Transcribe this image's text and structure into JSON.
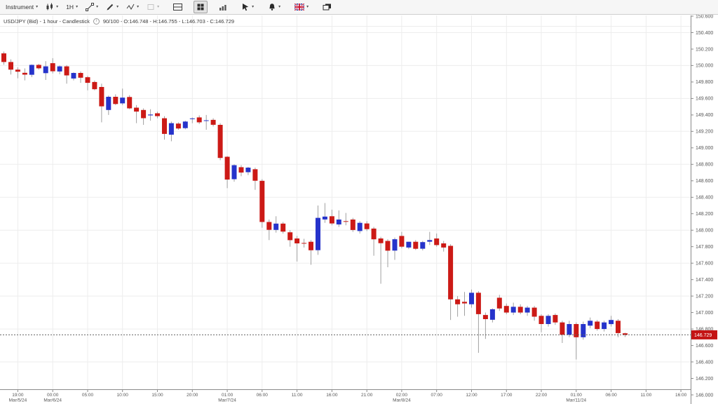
{
  "toolbar": {
    "items": [
      {
        "name": "instrument-selector",
        "label": "Instrument",
        "icon": null,
        "caret": true
      },
      {
        "name": "chart-type-button",
        "label": null,
        "icon": "candlestick-chart-icon",
        "caret": true
      },
      {
        "name": "timeframe-button",
        "label": "1H",
        "icon": null,
        "caret": true
      },
      {
        "name": "trendline-tool-button",
        "label": null,
        "icon": "trendline-icon",
        "caret": true
      },
      {
        "name": "draw-tool-button",
        "label": null,
        "icon": "pencil-icon",
        "caret": true
      },
      {
        "name": "indicators-button",
        "label": null,
        "icon": "indicator-wave-icon",
        "caret": true
      },
      {
        "name": "templates-button",
        "label": null,
        "icon": "empty-square-icon",
        "caret": true,
        "disabled": true
      },
      {
        "name": "single-chart-layout-button",
        "label": null,
        "icon": "split-layout-icon",
        "caret": false,
        "gap": true
      },
      {
        "name": "grid-chart-layout-button",
        "label": null,
        "icon": "tile-layout-icon",
        "caret": false,
        "active": true,
        "gap": true
      },
      {
        "name": "volume-bars-button",
        "label": null,
        "icon": "bar-chart-icon",
        "caret": false,
        "gap": true
      },
      {
        "name": "pointer-tool-button",
        "label": null,
        "icon": "cursor-arrow-icon",
        "caret": true,
        "gap": true
      },
      {
        "name": "alerts-button",
        "label": null,
        "icon": "bell-icon",
        "caret": true,
        "gap": true
      },
      {
        "name": "language-selector",
        "label": null,
        "icon": "uk-flag-icon",
        "caret": true,
        "gap": true
      },
      {
        "name": "displays-button",
        "label": null,
        "icon": "monitor-icon",
        "caret": false,
        "gap": true
      }
    ],
    "caret_glyph": "▾"
  },
  "info_bar": {
    "symbol_text": "USD/JPY (Bid) - 1 hour - Candlestick",
    "info_icon_glyph": "i",
    "stats_text": "90/100 - O:146.748 - H:146.755 - L:146.703 - C:146.729"
  },
  "chart_data": {
    "type": "candlestick",
    "symbol": "USD/JPY (Bid)",
    "timeframe": "1 hour",
    "bars_shown": "90/100",
    "last_bar": {
      "open": 146.748,
      "high": 146.755,
      "low": 146.703,
      "close": 146.729
    },
    "current_price": 146.729,
    "current_price_label": "146.729",
    "ylim": [
      146.0,
      150.6
    ],
    "grid": true,
    "up_color": "#2633cb",
    "down_color": "#cc1a16",
    "wick_color": "#a0a0a0",
    "price_tag_color": "#c41414",
    "price_axis_labels": [
      "150.600",
      "150.400",
      "150.200",
      "150.000",
      "149.800",
      "149.600",
      "149.400",
      "149.200",
      "149.000",
      "148.800",
      "148.600",
      "148.400",
      "148.200",
      "148.000",
      "147.800",
      "147.600",
      "147.400",
      "147.200",
      "147.000",
      "146.800",
      "146.600",
      "146.400",
      "146.200",
      "146.000"
    ],
    "grid_prices": [
      150.4,
      150.0,
      149.6,
      149.2,
      148.8,
      148.4,
      148.0,
      147.6,
      147.2,
      146.8,
      146.4,
      146.0
    ],
    "time_labels": [
      {
        "time": "19:00",
        "date": "Mar/5/24"
      },
      {
        "time": "00:00",
        "date": "Mar/6/24"
      },
      {
        "time": "05:00"
      },
      {
        "time": "10:00"
      },
      {
        "time": "15:00"
      },
      {
        "time": "20:00"
      },
      {
        "time": "01:00",
        "date": "Mar/7/24"
      },
      {
        "time": "06:00"
      },
      {
        "time": "11:00"
      },
      {
        "time": "16:00"
      },
      {
        "time": "21:00"
      },
      {
        "time": "02:00",
        "date": "Mar/8/24"
      },
      {
        "time": "07:00"
      },
      {
        "time": "12:00"
      },
      {
        "time": "17:00"
      },
      {
        "time": "22:00"
      },
      {
        "time": "01:00",
        "date": "Mar/11/24"
      },
      {
        "time": "06:00"
      },
      {
        "time": "11:00"
      },
      {
        "time": "16:00"
      }
    ],
    "candles": [
      [
        150.148,
        150.17,
        150.01,
        150.043
      ],
      [
        150.043,
        150.075,
        149.89,
        149.95
      ],
      [
        149.95,
        149.978,
        149.845,
        149.925
      ],
      [
        149.912,
        149.965,
        149.82,
        149.89
      ],
      [
        149.888,
        150.013,
        149.86,
        150.008
      ],
      [
        150.008,
        150.02,
        149.95,
        149.966
      ],
      [
        149.907,
        150.053,
        149.825,
        149.99
      ],
      [
        150.028,
        150.09,
        149.905,
        149.93
      ],
      [
        149.928,
        150.0,
        149.895,
        149.99
      ],
      [
        149.99,
        150.005,
        149.78,
        149.88
      ],
      [
        149.843,
        149.918,
        149.82,
        149.91
      ],
      [
        149.91,
        149.928,
        149.79,
        149.852
      ],
      [
        149.858,
        149.875,
        149.7,
        149.79
      ],
      [
        149.8,
        149.818,
        149.7,
        149.712
      ],
      [
        149.74,
        149.78,
        149.31,
        149.505
      ],
      [
        149.46,
        149.635,
        149.4,
        149.62
      ],
      [
        149.62,
        149.65,
        149.52,
        149.532
      ],
      [
        149.54,
        149.72,
        149.52,
        149.61
      ],
      [
        149.618,
        149.64,
        149.47,
        149.48
      ],
      [
        149.488,
        149.52,
        149.3,
        149.44
      ],
      [
        149.46,
        149.48,
        149.28,
        149.36
      ],
      [
        149.395,
        149.47,
        149.33,
        149.405
      ],
      [
        149.42,
        149.44,
        149.36,
        149.385
      ],
      [
        149.36,
        149.385,
        149.1,
        149.17
      ],
      [
        149.16,
        149.32,
        149.08,
        149.3
      ],
      [
        149.295,
        149.31,
        149.22,
        149.235
      ],
      [
        149.24,
        149.33,
        149.225,
        149.32
      ],
      [
        149.35,
        149.37,
        149.3,
        149.358
      ],
      [
        149.37,
        149.395,
        149.29,
        149.31
      ],
      [
        149.33,
        149.4,
        149.22,
        149.335
      ],
      [
        149.34,
        149.36,
        149.26,
        149.28
      ],
      [
        149.28,
        149.3,
        148.85,
        148.878
      ],
      [
        148.892,
        148.9,
        148.51,
        148.615
      ],
      [
        148.62,
        148.8,
        148.59,
        148.79
      ],
      [
        148.765,
        148.79,
        148.655,
        148.7
      ],
      [
        148.705,
        148.77,
        148.67,
        148.76
      ],
      [
        148.74,
        148.76,
        148.49,
        148.6
      ],
      [
        148.6,
        148.62,
        148.03,
        148.1
      ],
      [
        148.1,
        148.13,
        147.88,
        148.005
      ],
      [
        148.003,
        148.17,
        147.97,
        148.08
      ],
      [
        148.08,
        148.1,
        147.96,
        147.983
      ],
      [
        147.975,
        148.0,
        147.8,
        147.88
      ],
      [
        147.9,
        147.93,
        147.62,
        147.84
      ],
      [
        147.845,
        147.895,
        147.79,
        147.842
      ],
      [
        147.86,
        147.88,
        147.58,
        147.757
      ],
      [
        147.757,
        148.3,
        147.7,
        148.15
      ],
      [
        148.13,
        148.33,
        148.09,
        148.165
      ],
      [
        148.17,
        148.25,
        148.06,
        148.082
      ],
      [
        148.07,
        148.24,
        148.04,
        148.13
      ],
      [
        148.11,
        148.21,
        148.06,
        148.103
      ],
      [
        148.13,
        148.15,
        147.98,
        148.003
      ],
      [
        147.99,
        148.11,
        147.96,
        148.09
      ],
      [
        148.082,
        148.11,
        147.99,
        148.013
      ],
      [
        148.02,
        148.04,
        147.69,
        147.89
      ],
      [
        147.9,
        147.92,
        147.35,
        147.843
      ],
      [
        147.87,
        147.89,
        147.55,
        147.752
      ],
      [
        147.752,
        147.91,
        147.64,
        147.89
      ],
      [
        147.93,
        147.98,
        147.78,
        147.8
      ],
      [
        147.79,
        147.86,
        147.77,
        147.86
      ],
      [
        147.86,
        147.88,
        147.76,
        147.775
      ],
      [
        147.775,
        147.87,
        147.755,
        147.855
      ],
      [
        147.86,
        147.98,
        147.82,
        147.88
      ],
      [
        147.9,
        147.96,
        147.8,
        147.82
      ],
      [
        147.84,
        147.87,
        147.74,
        147.79
      ],
      [
        147.81,
        147.83,
        146.91,
        147.16
      ],
      [
        147.16,
        147.2,
        146.95,
        147.1
      ],
      [
        147.13,
        147.25,
        146.96,
        147.11
      ],
      [
        147.1,
        147.28,
        147.06,
        147.24
      ],
      [
        147.24,
        147.26,
        146.51,
        146.98
      ],
      [
        146.97,
        147.0,
        146.68,
        146.92
      ],
      [
        146.912,
        147.05,
        146.88,
        147.04
      ],
      [
        147.18,
        147.215,
        147.02,
        147.05
      ],
      [
        147.08,
        147.11,
        146.98,
        147.0
      ],
      [
        147.0,
        147.12,
        146.97,
        147.07
      ],
      [
        147.07,
        147.1,
        146.98,
        147.0
      ],
      [
        147.0,
        147.08,
        146.96,
        147.06
      ],
      [
        147.06,
        147.08,
        146.9,
        146.95
      ],
      [
        146.96,
        146.98,
        146.76,
        146.86
      ],
      [
        146.86,
        146.98,
        146.83,
        146.96
      ],
      [
        146.97,
        146.99,
        146.85,
        146.88
      ],
      [
        146.88,
        146.9,
        146.63,
        146.73
      ],
      [
        146.73,
        146.9,
        146.7,
        146.86
      ],
      [
        146.86,
        146.88,
        146.43,
        146.7
      ],
      [
        146.7,
        146.89,
        146.67,
        146.86
      ],
      [
        146.84,
        146.94,
        146.81,
        146.9
      ],
      [
        146.89,
        146.91,
        146.78,
        146.8
      ],
      [
        146.8,
        146.9,
        146.77,
        146.88
      ],
      [
        146.86,
        146.96,
        146.83,
        146.91
      ],
      [
        146.9,
        146.92,
        146.7,
        146.75
      ],
      [
        146.748,
        146.755,
        146.703,
        146.729
      ]
    ]
  }
}
